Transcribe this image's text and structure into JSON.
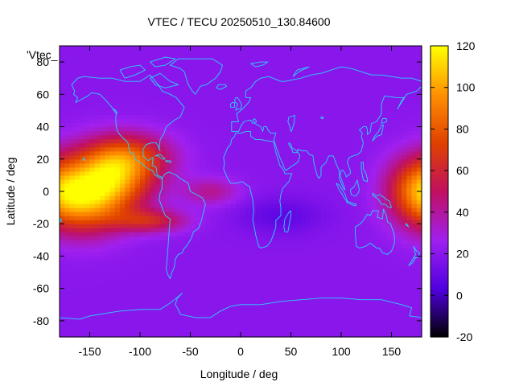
{
  "chart_data": {
    "type": "heatmap",
    "title": "VTEC / TECU 20250510_130.84600",
    "xlabel": "Longitude / deg",
    "ylabel": "Latitude / deg",
    "series_key": "'Vtec_",
    "xlim": [
      -180,
      180
    ],
    "ylim": [
      -90,
      90
    ],
    "x_ticks": [
      -150,
      -100,
      -50,
      0,
      50,
      100,
      150
    ],
    "y_ticks": [
      -80,
      -60,
      -40,
      -20,
      0,
      20,
      40,
      60,
      80
    ],
    "colorbar_range": [
      -20,
      120
    ],
    "colorbar_ticks": [
      -20,
      0,
      20,
      40,
      60,
      80,
      100,
      120
    ],
    "background_level": 20,
    "features": [
      {
        "lon": -130,
        "lat": 8,
        "value": 92,
        "sigma_lon": 30,
        "sigma_lat": 14
      },
      {
        "lon": -155,
        "lat": -8,
        "value": 72,
        "sigma_lon": 28,
        "sigma_lat": 14
      },
      {
        "lon": -110,
        "lat": 22,
        "value": 60,
        "sigma_lon": 30,
        "sigma_lat": 10
      },
      {
        "lon": -90,
        "lat": -18,
        "value": 58,
        "sigma_lon": 25,
        "sigma_lat": 5
      },
      {
        "lon": -30,
        "lat": 0,
        "value": 42,
        "sigma_lon": 20,
        "sigma_lat": 6
      },
      {
        "lon": 175,
        "lat": 2,
        "value": 70,
        "sigma_lon": 22,
        "sigma_lat": 14
      },
      {
        "lon": 40,
        "lat": -15,
        "value": 8,
        "sigma_lon": 30,
        "sigma_lat": 8
      }
    ],
    "colors": {
      "coastline": "#26d3ff",
      "colormap": [
        "#000000",
        "#5000e0",
        "#a020f0",
        "#c01060",
        "#e04000",
        "#ff9000",
        "#ffff00"
      ]
    }
  }
}
